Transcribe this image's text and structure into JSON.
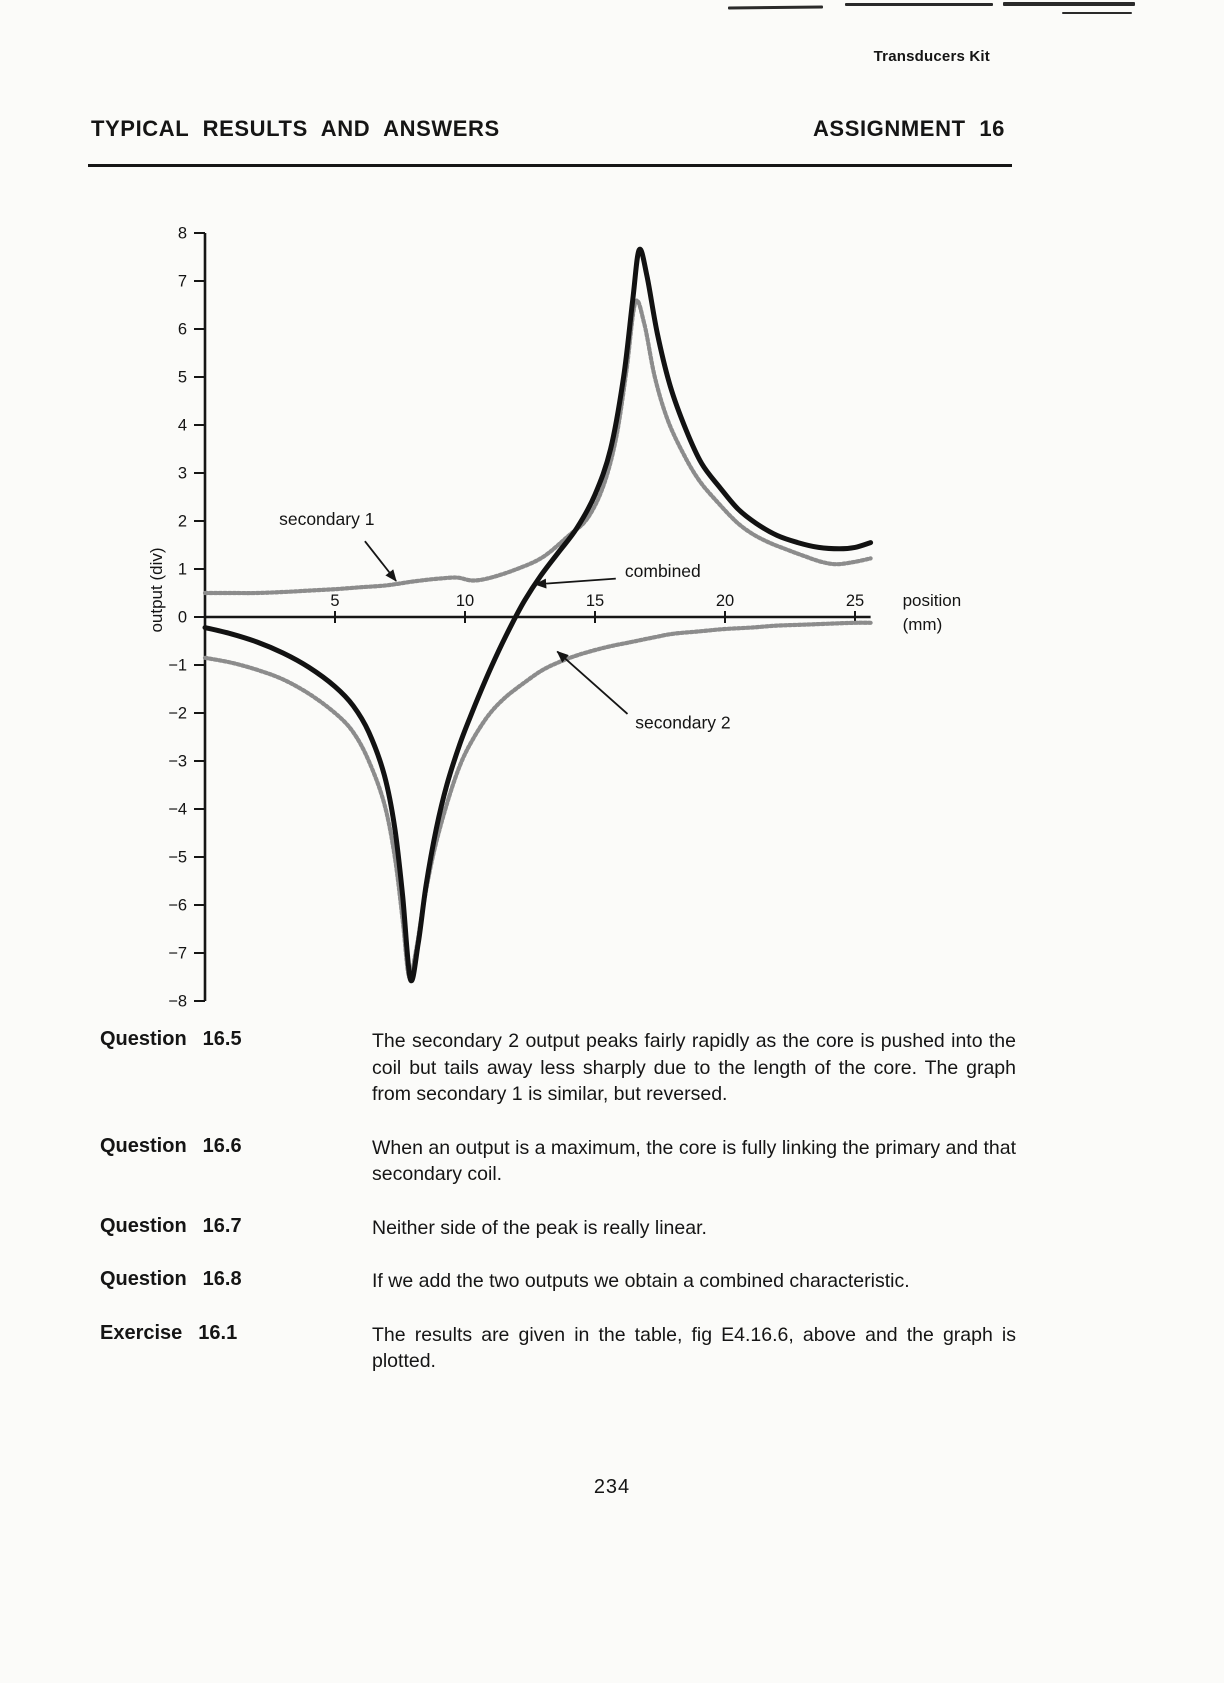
{
  "page": {
    "kit_label": "Transducers Kit",
    "header": {
      "left": "TYPICAL RESULTS AND ANSWERS",
      "right": "ASSIGNMENT 16"
    },
    "page_number": "234"
  },
  "chart_data": {
    "type": "line",
    "title": "",
    "xlabel": "position (mm)",
    "xlabel_lines": [
      "position",
      "(mm)"
    ],
    "ylabel": "output (div)",
    "xlim": [
      0,
      25.6
    ],
    "ylim": [
      -8,
      8
    ],
    "x_ticks": [
      5,
      10,
      15,
      20,
      25
    ],
    "y_ticks": [
      8,
      7,
      6,
      5,
      4,
      3,
      2,
      1,
      0,
      -1,
      -2,
      -3,
      -4,
      -5,
      -6,
      -7,
      -8
    ],
    "grid": false,
    "legend_position": "inline-annotations",
    "series": [
      {
        "name": "secondary 1",
        "style": "gray-textured",
        "points": [
          [
            0,
            0.5
          ],
          [
            1,
            0.5
          ],
          [
            2,
            0.5
          ],
          [
            3,
            0.52
          ],
          [
            4,
            0.55
          ],
          [
            5,
            0.58
          ],
          [
            6,
            0.62
          ],
          [
            7,
            0.66
          ],
          [
            8,
            0.74
          ],
          [
            9,
            0.8
          ],
          [
            9.7,
            0.82
          ],
          [
            10.3,
            0.76
          ],
          [
            11,
            0.82
          ],
          [
            12,
            1.0
          ],
          [
            13,
            1.25
          ],
          [
            14,
            1.7
          ],
          [
            14.7,
            2.05
          ],
          [
            15.3,
            2.7
          ],
          [
            15.8,
            3.7
          ],
          [
            16.2,
            5.1
          ],
          [
            16.55,
            6.55
          ],
          [
            16.9,
            6.1
          ],
          [
            17.3,
            5.0
          ],
          [
            17.8,
            4.1
          ],
          [
            18.4,
            3.4
          ],
          [
            19,
            2.85
          ],
          [
            19.7,
            2.4
          ],
          [
            20.4,
            2.0
          ],
          [
            21,
            1.75
          ],
          [
            21.7,
            1.55
          ],
          [
            22.4,
            1.4
          ],
          [
            23,
            1.28
          ],
          [
            23.7,
            1.15
          ],
          [
            24.3,
            1.1
          ],
          [
            25,
            1.15
          ],
          [
            25.6,
            1.22
          ]
        ]
      },
      {
        "name": "secondary 2",
        "style": "gray-textured",
        "points": [
          [
            0,
            -0.85
          ],
          [
            1,
            -0.95
          ],
          [
            2,
            -1.1
          ],
          [
            3,
            -1.3
          ],
          [
            4,
            -1.6
          ],
          [
            5,
            -2.0
          ],
          [
            5.7,
            -2.4
          ],
          [
            6.3,
            -3.0
          ],
          [
            6.9,
            -3.9
          ],
          [
            7.3,
            -5.0
          ],
          [
            7.6,
            -6.3
          ],
          [
            7.85,
            -7.5
          ],
          [
            8.1,
            -7.0
          ],
          [
            8.4,
            -6.0
          ],
          [
            8.8,
            -4.9
          ],
          [
            9.3,
            -3.9
          ],
          [
            9.8,
            -3.1
          ],
          [
            10.3,
            -2.55
          ],
          [
            10.9,
            -2.05
          ],
          [
            11.5,
            -1.7
          ],
          [
            12.2,
            -1.4
          ],
          [
            13,
            -1.1
          ],
          [
            13.8,
            -0.9
          ],
          [
            14.6,
            -0.75
          ],
          [
            15.5,
            -0.62
          ],
          [
            16.4,
            -0.52
          ],
          [
            17.3,
            -0.42
          ],
          [
            18,
            -0.35
          ],
          [
            19,
            -0.3
          ],
          [
            20,
            -0.25
          ],
          [
            21,
            -0.22
          ],
          [
            22,
            -0.18
          ],
          [
            23,
            -0.16
          ],
          [
            24,
            -0.14
          ],
          [
            25,
            -0.12
          ],
          [
            25.6,
            -0.12
          ]
        ]
      },
      {
        "name": "combined",
        "style": "black-solid",
        "points": [
          [
            0,
            -0.22
          ],
          [
            1,
            -0.35
          ],
          [
            2,
            -0.52
          ],
          [
            3,
            -0.75
          ],
          [
            4,
            -1.05
          ],
          [
            5,
            -1.45
          ],
          [
            5.7,
            -1.85
          ],
          [
            6.3,
            -2.4
          ],
          [
            6.9,
            -3.3
          ],
          [
            7.3,
            -4.4
          ],
          [
            7.6,
            -5.8
          ],
          [
            7.9,
            -7.55
          ],
          [
            8.2,
            -6.8
          ],
          [
            8.5,
            -5.6
          ],
          [
            8.9,
            -4.4
          ],
          [
            9.3,
            -3.5
          ],
          [
            9.8,
            -2.65
          ],
          [
            10.3,
            -1.95
          ],
          [
            10.8,
            -1.3
          ],
          [
            11.3,
            -0.7
          ],
          [
            11.8,
            -0.15
          ],
          [
            12.3,
            0.35
          ],
          [
            12.9,
            0.85
          ],
          [
            13.6,
            1.35
          ],
          [
            14.3,
            1.85
          ],
          [
            15,
            2.55
          ],
          [
            15.6,
            3.5
          ],
          [
            16.1,
            5.0
          ],
          [
            16.45,
            6.6
          ],
          [
            16.7,
            7.65
          ],
          [
            17,
            7.1
          ],
          [
            17.4,
            5.9
          ],
          [
            17.9,
            4.8
          ],
          [
            18.5,
            3.9
          ],
          [
            19.1,
            3.2
          ],
          [
            19.8,
            2.7
          ],
          [
            20.5,
            2.25
          ],
          [
            21.2,
            1.95
          ],
          [
            22,
            1.7
          ],
          [
            22.8,
            1.55
          ],
          [
            23.6,
            1.45
          ],
          [
            24.4,
            1.42
          ],
          [
            25,
            1.45
          ],
          [
            25.6,
            1.55
          ]
        ]
      }
    ],
    "annotations": [
      {
        "text": "secondary 1",
        "label_at": [
          2.85,
          1.92
        ],
        "arrow_from": [
          6.15,
          1.58
        ],
        "arrow_to": [
          7.35,
          0.75
        ]
      },
      {
        "text": "combined",
        "label_at": [
          16.15,
          0.83
        ],
        "arrow_from": [
          15.8,
          0.8
        ],
        "arrow_to": [
          12.7,
          0.68
        ]
      },
      {
        "text": "secondary 2",
        "label_at": [
          16.55,
          -2.32
        ],
        "arrow_from": [
          16.25,
          -2.02
        ],
        "arrow_to": [
          13.55,
          -0.72
        ]
      }
    ]
  },
  "qa": {
    "items": [
      {
        "kind": "Question",
        "num": "16.5",
        "text": "The secondary 2 output peaks fairly rapidly as the core is pushed into the coil but tails away less sharply due to the length of the core. The graph from secondary 1 is similar, but reversed."
      },
      {
        "kind": "Question",
        "num": "16.6",
        "text": "When an output is a maximum, the core is fully linking the primary and that secondary coil."
      },
      {
        "kind": "Question",
        "num": "16.7",
        "text": "Neither side of the peak is really linear."
      },
      {
        "kind": "Question",
        "num": "16.8",
        "text": "If we add the two outputs we obtain a combined characteristic."
      },
      {
        "kind": "Exercise",
        "num": "16.1",
        "text": "The results are given in the table, fig E4.16.6, above and the graph is plotted."
      }
    ]
  }
}
